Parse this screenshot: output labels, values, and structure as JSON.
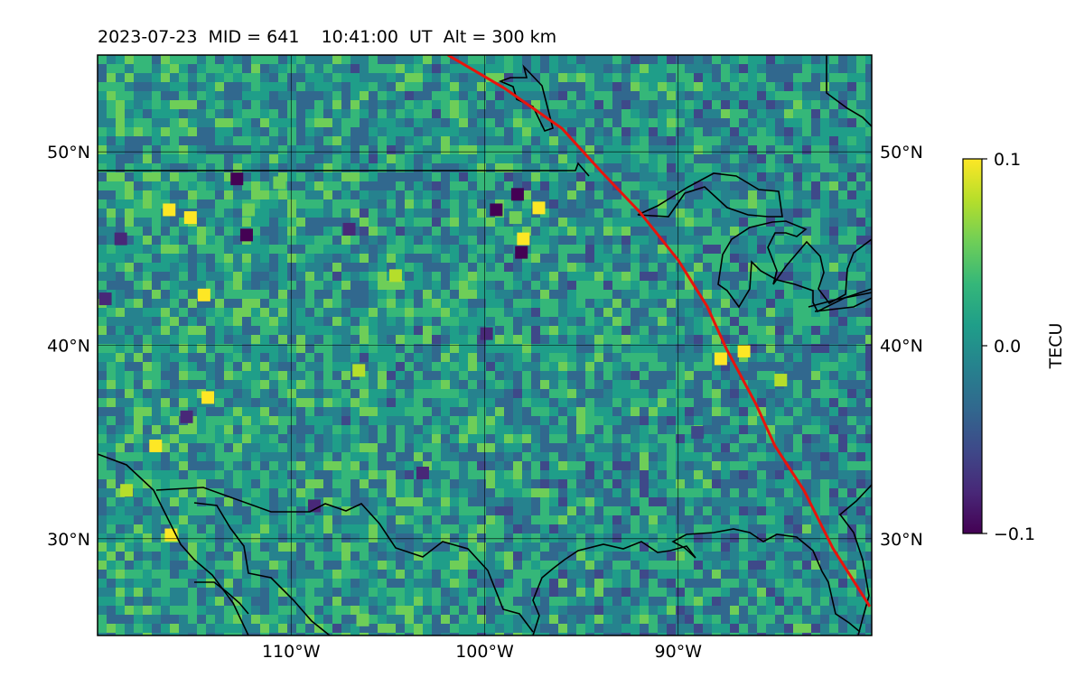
{
  "header": {
    "date": "2023-07-23",
    "mid_label": "MID = 641",
    "time_label": "10:41:00  UT",
    "alt_label": "Alt = 300 km"
  },
  "map": {
    "lon_range": [
      -120,
      -80
    ],
    "lat_range": [
      25,
      55
    ],
    "lon_ticks": [
      {
        "value": -110,
        "label": "110°W"
      },
      {
        "value": -100,
        "label": "100°W"
      },
      {
        "value": -90,
        "label": "90°W"
      }
    ],
    "lat_ticks": [
      {
        "value": 50,
        "label": "50°N"
      },
      {
        "value": 40,
        "label": "40°N"
      },
      {
        "value": 30,
        "label": "30°N"
      }
    ],
    "gridlines": true,
    "track_color": "#e8140c",
    "coast_color": "#000000",
    "terminator_track": [
      [
        -101.9,
        55
      ],
      [
        -99,
        53.3
      ],
      [
        -96,
        51.2
      ],
      [
        -94,
        49
      ],
      [
        -92,
        46.9
      ],
      [
        -90,
        44.4
      ],
      [
        -88.5,
        42
      ],
      [
        -87.5,
        39.8
      ],
      [
        -86,
        37
      ],
      [
        -85,
        34.8
      ],
      [
        -83.5,
        32.5
      ],
      [
        -82,
        29.5
      ],
      [
        -80.1,
        26.5
      ]
    ],
    "hotspots": [
      {
        "lon": -115.2,
        "lat": 46.6,
        "value": 0.1
      },
      {
        "lon": -116.3,
        "lat": 47.0,
        "value": 0.08
      },
      {
        "lon": -114.5,
        "lat": 42.6,
        "value": 0.09
      },
      {
        "lon": -114.3,
        "lat": 37.3,
        "value": 0.1
      },
      {
        "lon": -117.0,
        "lat": 34.8,
        "value": 0.09
      },
      {
        "lon": -116.2,
        "lat": 30.2,
        "value": 0.1
      },
      {
        "lon": -118.5,
        "lat": 32.5,
        "value": 0.07
      },
      {
        "lon": -98.0,
        "lat": 45.5,
        "value": 0.1
      },
      {
        "lon": -97.2,
        "lat": 47.1,
        "value": 0.08
      },
      {
        "lon": -106.3,
        "lat": 25.8,
        "value": 0.05
      },
      {
        "lon": -112.2,
        "lat": 47.0,
        "value": 0.06
      },
      {
        "lon": -106.5,
        "lat": 38.7,
        "value": 0.07
      },
      {
        "lon": -84.7,
        "lat": 38.2,
        "value": 0.07
      },
      {
        "lon": -86.6,
        "lat": 39.7,
        "value": 0.09
      },
      {
        "lon": -87.8,
        "lat": 39.3,
        "value": 0.08
      },
      {
        "lon": -98.4,
        "lat": 46.6,
        "value": 0.06
      },
      {
        "lon": -110.6,
        "lat": 48.4,
        "value": 0.06
      },
      {
        "lon": -104.6,
        "lat": 43.6,
        "value": 0.07
      }
    ],
    "coldspots": [
      {
        "lon": -112.3,
        "lat": 45.7,
        "value": -0.1
      },
      {
        "lon": -112.8,
        "lat": 48.6,
        "value": -0.1
      },
      {
        "lon": -99.4,
        "lat": 47.0,
        "value": -0.1
      },
      {
        "lon": -98.1,
        "lat": 44.8,
        "value": -0.09
      },
      {
        "lon": -99.9,
        "lat": 40.6,
        "value": -0.08
      },
      {
        "lon": -119.6,
        "lat": 42.4,
        "value": -0.08
      },
      {
        "lon": -118.8,
        "lat": 45.5,
        "value": -0.07
      },
      {
        "lon": -115.4,
        "lat": 36.3,
        "value": -0.08
      },
      {
        "lon": -98.3,
        "lat": 47.8,
        "value": -0.09
      },
      {
        "lon": -103.2,
        "lat": 33.4,
        "value": -0.07
      },
      {
        "lon": -108.8,
        "lat": 31.7,
        "value": -0.08
      },
      {
        "lon": -107.0,
        "lat": 46.0,
        "value": -0.07
      },
      {
        "lon": -89.0,
        "lat": 35.5,
        "value": -0.06
      }
    ]
  },
  "colorbar": {
    "label": "TECU",
    "max_label": "0.1",
    "mid_label": "0.0",
    "min_label": "−0.1",
    "colors": [
      "#440154",
      "#482878",
      "#3e4989",
      "#31688e",
      "#26828e",
      "#1f9e89",
      "#35b779",
      "#6ece58",
      "#b5de2b",
      "#fde725"
    ]
  }
}
